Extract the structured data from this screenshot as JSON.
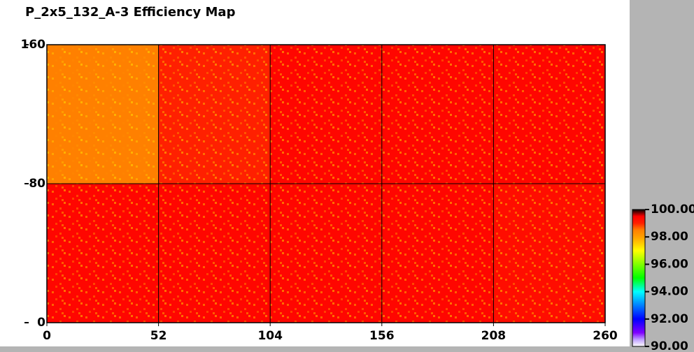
{
  "chart_data": {
    "type": "heatmap",
    "title": "P_2x5_132_A-3 Efficiency Map",
    "x_edges": [
      0,
      52,
      104,
      156,
      208,
      260
    ],
    "y_edges": [
      0,
      80,
      160
    ],
    "values": [
      [
        99.4,
        99.4,
        99.4,
        99.4,
        99.3
      ],
      [
        98.5,
        99.0,
        99.4,
        99.4,
        99.4
      ]
    ],
    "xlim": [
      0,
      260
    ],
    "xticks": [
      0,
      52,
      104,
      156,
      208,
      260
    ],
    "ylim": [
      0,
      160
    ],
    "yticks": [
      0,
      80,
      160
    ],
    "grid": true,
    "clim": [
      90,
      100
    ],
    "cticks": [
      {
        "value": 90,
        "label": "90.00"
      },
      {
        "value": 92,
        "label": "92.00"
      },
      {
        "value": 94,
        "label": "94.00"
      },
      {
        "value": 96,
        "label": "96.00"
      },
      {
        "value": 98,
        "label": "98.00"
      },
      {
        "value": 100,
        "label": "100.00"
      }
    ],
    "colormap": [
      "#ffffff",
      "#c0a0ff",
      "#8000ff",
      "#4000ff",
      "#0000ff",
      "#0040ff",
      "#0080ff",
      "#00c0ff",
      "#00ffff",
      "#00ff80",
      "#00ff00",
      "#40ff00",
      "#80ff00",
      "#c0ff00",
      "#ffff00",
      "#ffcc00",
      "#ffa000",
      "#ff8000",
      "#ff2000",
      "#ff0000",
      "#000000"
    ]
  }
}
